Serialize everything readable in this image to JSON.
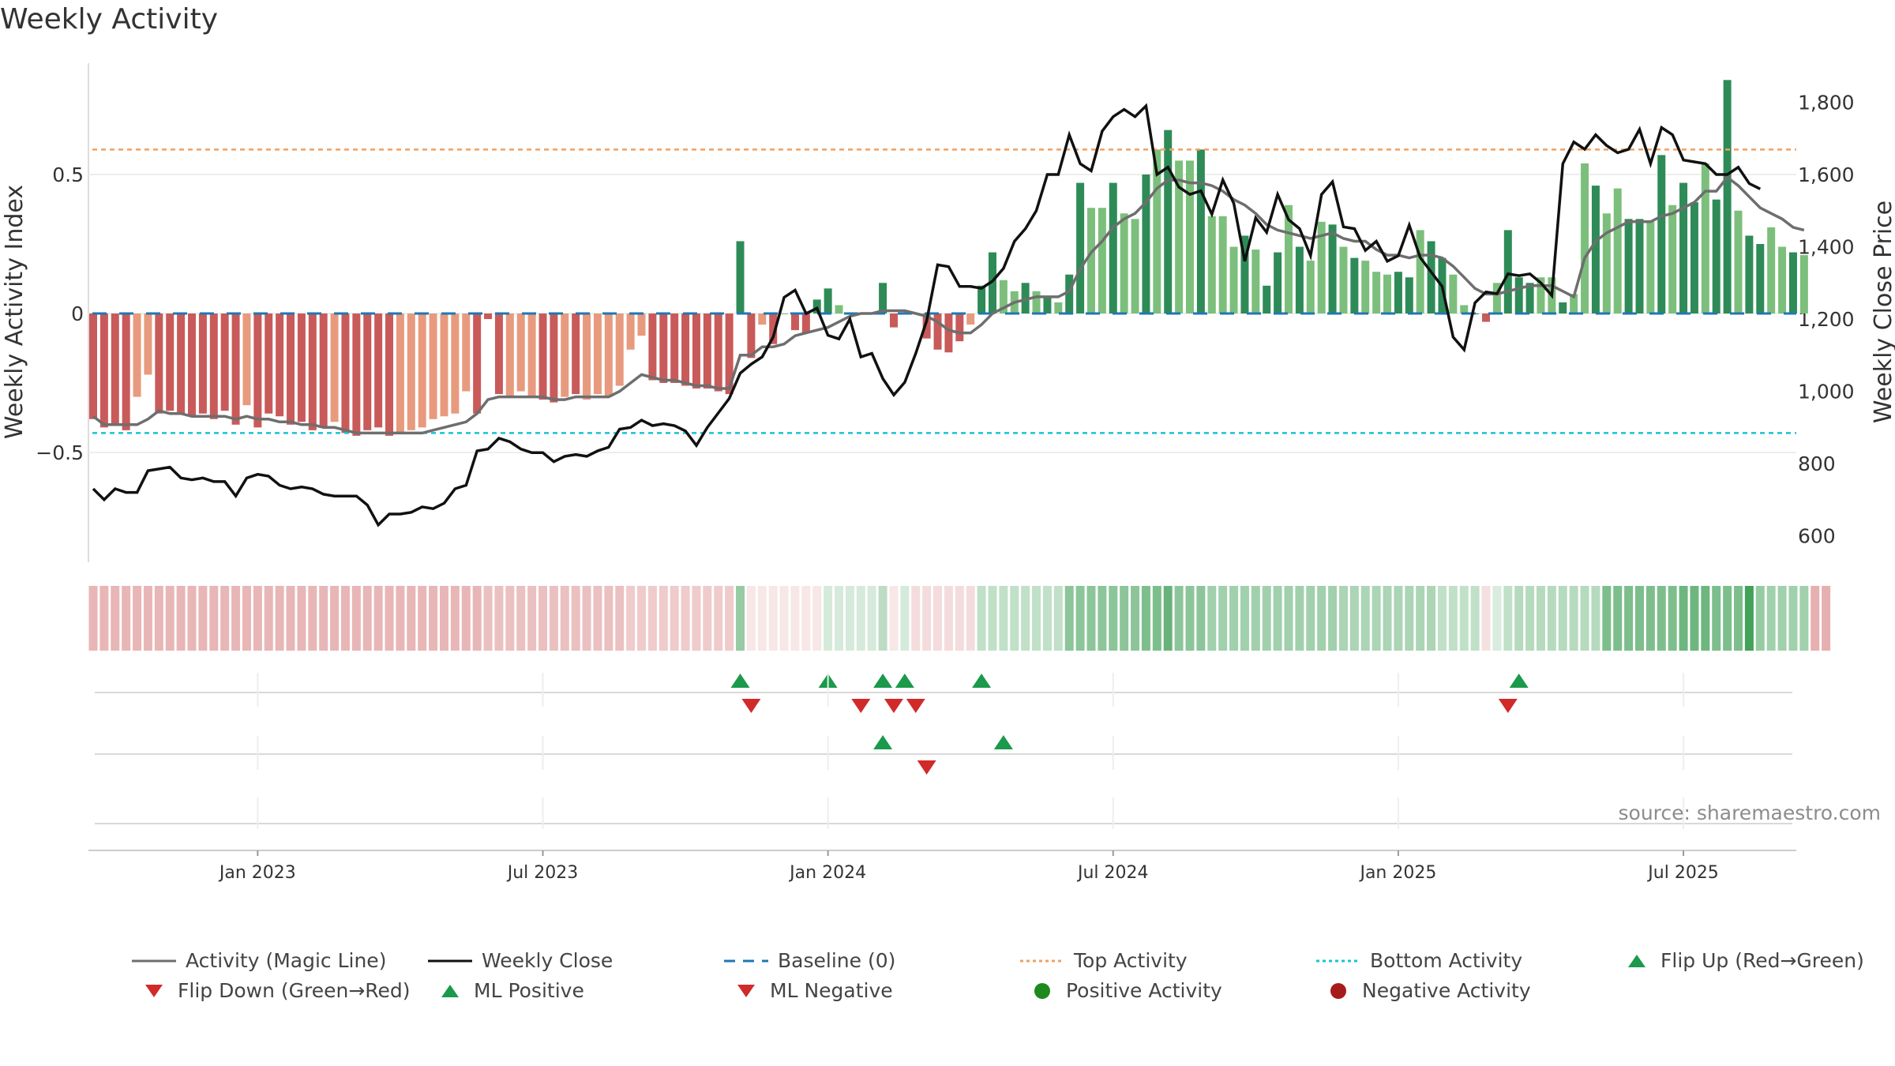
{
  "title": "Weekly Activity",
  "source": "source: sharemaestro.com",
  "colors": {
    "neg_strong": "#c95a5a",
    "neg_weak": "#e89a7e",
    "pos_strong": "#2e8b57",
    "pos_weak": "#7cbf7c",
    "close_line": "#111111",
    "magic_line": "#6e6e6e",
    "baseline": "#1f77b4",
    "top": "#f0a060",
    "bottom": "#17c3d6",
    "flip_up": "#1a9a4a",
    "flip_down": "#d12a2a"
  },
  "chart_data": {
    "type": "bar",
    "title": "Weekly Activity",
    "ylabel_left": "Weekly Activity Index",
    "ylabel_right": "Weekly Close Price",
    "y_left_ticks": [
      "0.5",
      "0",
      "−0.5"
    ],
    "y_left_tick_values": [
      0.5,
      0,
      -0.5
    ],
    "y_left_range": [
      -0.9,
      0.9
    ],
    "y_right_ticks": [
      "1,800",
      "1,600",
      "1,400",
      "1,200",
      "1,000",
      "800",
      "600"
    ],
    "y_right_tick_values": [
      1800,
      1600,
      1400,
      1200,
      1000,
      800,
      600
    ],
    "y_right_range": [
      530,
      1910
    ],
    "x_ticks": [
      "Jan 2023",
      "Jul 2023",
      "Jan 2024",
      "Jul 2024",
      "Jan 2025",
      "Jul 2025"
    ],
    "x_tick_week_index": [
      15,
      41,
      67,
      93,
      119,
      145
    ],
    "top_activity": 0.59,
    "bottom_activity": -0.43,
    "baseline": 0,
    "weeks": 157,
    "activity": [
      -0.38,
      -0.41,
      -0.4,
      -0.42,
      -0.3,
      -0.22,
      -0.36,
      -0.35,
      -0.36,
      -0.37,
      -0.36,
      -0.38,
      -0.35,
      -0.4,
      -0.33,
      -0.41,
      -0.36,
      -0.37,
      -0.4,
      -0.39,
      -0.42,
      -0.41,
      -0.39,
      -0.43,
      -0.44,
      -0.42,
      -0.41,
      -0.44,
      -0.43,
      -0.42,
      -0.41,
      -0.38,
      -0.37,
      -0.36,
      -0.28,
      -0.36,
      -0.02,
      -0.29,
      -0.3,
      -0.28,
      -0.3,
      -0.31,
      -0.32,
      -0.3,
      -0.29,
      -0.31,
      -0.29,
      -0.3,
      -0.26,
      -0.13,
      -0.08,
      -0.24,
      -0.25,
      -0.25,
      -0.26,
      -0.27,
      -0.27,
      -0.28,
      -0.29,
      0.26,
      -0.16,
      -0.04,
      -0.11,
      0.0,
      -0.06,
      -0.07,
      0.05,
      0.09,
      0.03,
      0.0,
      0.0,
      0.0,
      0.11,
      -0.05,
      0.0,
      0.0,
      -0.09,
      -0.13,
      -0.14,
      -0.1,
      -0.04,
      0.1,
      0.22,
      0.12,
      0.08,
      0.11,
      0.08,
      0.06,
      0.04,
      0.14,
      0.47,
      0.38,
      0.38,
      0.47,
      0.36,
      0.34,
      0.5,
      0.59,
      0.66,
      0.55,
      0.55,
      0.59,
      0.35,
      0.35,
      0.24,
      0.28,
      0.23,
      0.1,
      0.22,
      0.39,
      0.24,
      0.19,
      0.33,
      0.32,
      0.24,
      0.2,
      0.19,
      0.15,
      0.14,
      0.15,
      0.13,
      0.3,
      0.26,
      0.2,
      0.14,
      0.03,
      0.0,
      -0.03,
      0.11,
      0.3,
      0.13,
      0.11,
      0.13,
      0.13,
      0.04,
      0.07,
      0.54,
      0.46,
      0.36,
      0.45,
      0.34,
      0.34,
      0.33,
      0.57,
      0.39,
      0.47,
      0.4,
      0.54,
      0.41,
      0.84,
      0.37,
      0.28,
      0.25,
      0.31,
      0.24,
      0.22,
      0.21
    ],
    "activity_strong": [
      1,
      1,
      1,
      1,
      0,
      0,
      1,
      1,
      1,
      1,
      1,
      1,
      1,
      1,
      0,
      1,
      1,
      1,
      1,
      1,
      1,
      1,
      0,
      1,
      1,
      1,
      1,
      1,
      0,
      0,
      0,
      0,
      0,
      0,
      0,
      1,
      1,
      1,
      0,
      0,
      0,
      1,
      1,
      0,
      1,
      0,
      0,
      0,
      0,
      0,
      0,
      1,
      1,
      1,
      1,
      1,
      1,
      1,
      1,
      1,
      1,
      0,
      1,
      0,
      1,
      1,
      1,
      1,
      0,
      0,
      0,
      0,
      1,
      1,
      0,
      0,
      1,
      1,
      1,
      1,
      0,
      1,
      1,
      0,
      0,
      1,
      0,
      1,
      0,
      1,
      1,
      0,
      0,
      1,
      0,
      0,
      1,
      0,
      1,
      0,
      0,
      1,
      0,
      0,
      0,
      1,
      0,
      1,
      1,
      0,
      1,
      0,
      0,
      1,
      0,
      1,
      0,
      0,
      0,
      1,
      1,
      0,
      1,
      1,
      0,
      0,
      1,
      1,
      0,
      1,
      1,
      1,
      0,
      0,
      1,
      0,
      0,
      1,
      0,
      0,
      1,
      1,
      0,
      1,
      0,
      1,
      1,
      0,
      1,
      1,
      0,
      1,
      1,
      0,
      0,
      1,
      0
    ],
    "magic_line": [
      -0.37,
      -0.4,
      -0.4,
      -0.4,
      -0.4,
      -0.38,
      -0.35,
      -0.36,
      -0.36,
      -0.37,
      -0.37,
      -0.37,
      -0.37,
      -0.38,
      -0.37,
      -0.38,
      -0.38,
      -0.39,
      -0.39,
      -0.4,
      -0.4,
      -0.41,
      -0.41,
      -0.42,
      -0.43,
      -0.43,
      -0.43,
      -0.43,
      -0.43,
      -0.43,
      -0.43,
      -0.42,
      -0.41,
      -0.4,
      -0.39,
      -0.36,
      -0.31,
      -0.3,
      -0.3,
      -0.3,
      -0.3,
      -0.3,
      -0.31,
      -0.31,
      -0.3,
      -0.3,
      -0.3,
      -0.3,
      -0.28,
      -0.25,
      -0.22,
      -0.23,
      -0.24,
      -0.24,
      -0.25,
      -0.26,
      -0.26,
      -0.27,
      -0.27,
      -0.15,
      -0.15,
      -0.12,
      -0.12,
      -0.11,
      -0.08,
      -0.07,
      -0.06,
      -0.05,
      -0.03,
      -0.01,
      0.0,
      0.0,
      0.01,
      0.01,
      0.01,
      0.0,
      -0.01,
      -0.03,
      -0.06,
      -0.07,
      -0.07,
      -0.04,
      0.0,
      0.02,
      0.04,
      0.05,
      0.06,
      0.06,
      0.06,
      0.08,
      0.16,
      0.22,
      0.26,
      0.31,
      0.34,
      0.36,
      0.4,
      0.45,
      0.48,
      0.48,
      0.47,
      0.47,
      0.46,
      0.44,
      0.41,
      0.39,
      0.36,
      0.32,
      0.3,
      0.29,
      0.28,
      0.27,
      0.28,
      0.29,
      0.27,
      0.26,
      0.26,
      0.23,
      0.21,
      0.21,
      0.2,
      0.21,
      0.21,
      0.2,
      0.17,
      0.13,
      0.09,
      0.07,
      0.07,
      0.08,
      0.09,
      0.1,
      0.1,
      0.1,
      0.08,
      0.06,
      0.2,
      0.26,
      0.29,
      0.31,
      0.33,
      0.33,
      0.33,
      0.35,
      0.36,
      0.38,
      0.4,
      0.44,
      0.44,
      0.49,
      0.46,
      0.42,
      0.38,
      0.36,
      0.34,
      0.31,
      0.3
    ],
    "weekly_close": [
      730,
      700,
      730,
      720,
      720,
      780,
      785,
      790,
      760,
      755,
      760,
      750,
      750,
      710,
      760,
      770,
      765,
      740,
      730,
      735,
      730,
      715,
      710,
      710,
      710,
      685,
      630,
      660,
      660,
      665,
      680,
      675,
      690,
      730,
      740,
      835,
      840,
      870,
      860,
      840,
      830,
      830,
      805,
      820,
      825,
      820,
      835,
      845,
      895,
      900,
      920,
      905,
      910,
      905,
      890,
      850,
      900,
      940,
      980,
      1050,
      1075,
      1095,
      1150,
      1260,
      1280,
      1215,
      1230,
      1155,
      1145,
      1200,
      1095,
      1105,
      1035,
      990,
      1025,
      1105,
      1195,
      1350,
      1345,
      1290,
      1290,
      1285,
      1305,
      1340,
      1415,
      1450,
      1500,
      1600,
      1600,
      1710,
      1630,
      1610,
      1720,
      1760,
      1780,
      1760,
      1790,
      1600,
      1620,
      1565,
      1545,
      1555,
      1490,
      1585,
      1520,
      1360,
      1480,
      1440,
      1545,
      1475,
      1450,
      1375,
      1545,
      1580,
      1455,
      1450,
      1390,
      1415,
      1360,
      1375,
      1460,
      1370,
      1330,
      1290,
      1150,
      1115,
      1245,
      1275,
      1270,
      1325,
      1320,
      1325,
      1300,
      1265,
      1630,
      1690,
      1670,
      1710,
      1680,
      1660,
      1670,
      1725,
      1630,
      1730,
      1710,
      1640,
      1635,
      1630,
      1600,
      1600,
      1620,
      1575,
      1560
    ],
    "heat_levels": [
      0.42,
      0.42,
      0.42,
      0.42,
      0.42,
      0.42,
      0.42,
      0.42,
      0.42,
      0.42,
      0.42,
      0.42,
      0.42,
      0.42,
      0.42,
      0.42,
      0.42,
      0.42,
      0.42,
      0.42,
      0.42,
      0.42,
      0.42,
      0.42,
      0.42,
      0.42,
      0.42,
      0.42,
      0.42,
      0.42,
      0.42,
      0.42,
      0.42,
      0.42,
      0.42,
      0.42,
      0.36,
      0.36,
      0.36,
      0.36,
      0.36,
      0.36,
      0.36,
      0.36,
      0.36,
      0.36,
      0.36,
      0.36,
      0.36,
      0.3,
      0.3,
      0.3,
      0.3,
      0.3,
      0.3,
      0.3,
      0.3,
      0.3,
      0.3,
      0.5,
      0.14,
      0.14,
      0.14,
      0.14,
      0.14,
      0.14,
      0.14,
      0.2,
      0.2,
      0.2,
      0.2,
      0.2,
      0.32,
      0.14,
      0.2,
      0.2,
      0.2,
      0.2,
      0.2,
      0.2,
      0.2,
      0.3,
      0.3,
      0.3,
      0.3,
      0.3,
      0.3,
      0.3,
      0.3,
      0.55,
      0.55,
      0.55,
      0.55,
      0.55,
      0.55,
      0.55,
      0.62,
      0.62,
      0.72,
      0.55,
      0.55,
      0.55,
      0.45,
      0.45,
      0.45,
      0.45,
      0.45,
      0.45,
      0.45,
      0.45,
      0.45,
      0.45,
      0.45,
      0.45,
      0.4,
      0.4,
      0.4,
      0.4,
      0.4,
      0.4,
      0.4,
      0.4,
      0.4,
      0.3,
      0.3,
      0.3,
      0.3,
      0.18,
      0.18,
      0.3,
      0.35,
      0.35,
      0.35,
      0.35,
      0.35,
      0.35,
      0.35,
      0.35,
      0.62,
      0.62,
      0.62,
      0.62,
      0.62,
      0.62,
      0.62,
      0.7,
      0.7,
      0.7,
      0.62,
      0.62,
      0.62,
      0.9,
      0.5,
      0.45,
      0.45,
      0.45,
      0.45,
      0.45,
      0.45
    ],
    "heat_sign": [
      -1,
      -1,
      -1,
      -1,
      -1,
      -1,
      -1,
      -1,
      -1,
      -1,
      -1,
      -1,
      -1,
      -1,
      -1,
      -1,
      -1,
      -1,
      -1,
      -1,
      -1,
      -1,
      -1,
      -1,
      -1,
      -1,
      -1,
      -1,
      -1,
      -1,
      -1,
      -1,
      -1,
      -1,
      -1,
      -1,
      -1,
      -1,
      -1,
      -1,
      -1,
      -1,
      -1,
      -1,
      -1,
      -1,
      -1,
      -1,
      -1,
      -1,
      -1,
      -1,
      -1,
      -1,
      -1,
      -1,
      -1,
      -1,
      -1,
      1,
      -1,
      -1,
      -1,
      -1,
      -1,
      -1,
      -1,
      1,
      1,
      1,
      1,
      1,
      1,
      -1,
      1,
      -1,
      -1,
      -1,
      -1,
      -1,
      -1,
      1,
      1,
      1,
      1,
      1,
      1,
      1,
      1,
      1,
      1,
      1,
      1,
      1,
      1,
      1,
      1,
      1,
      1,
      1,
      1,
      1,
      1,
      1,
      1,
      1,
      1,
      1,
      1,
      1,
      1,
      1,
      1,
      1,
      1,
      1,
      1,
      1,
      1,
      1,
      1,
      1,
      1,
      1,
      1,
      1,
      1,
      -1,
      1,
      1,
      1,
      1,
      1,
      1,
      1,
      1,
      1,
      1,
      1,
      1,
      1,
      1,
      1,
      1,
      1,
      1,
      1,
      1,
      1,
      1,
      1,
      1,
      1,
      1,
      1,
      1,
      1
    ],
    "flip_up_weeks": [
      59,
      67,
      72,
      74,
      81,
      130
    ],
    "flip_down_weeks": [
      60,
      70,
      73,
      75,
      129
    ],
    "ml_positive_weeks": [
      72,
      83
    ],
    "ml_negative_weeks": [
      76
    ],
    "positive_activity_weeks": [],
    "negative_activity_weeks": []
  },
  "legend": [
    {
      "label": "Activity (Magic Line)",
      "icon": "magic-line"
    },
    {
      "label": "Weekly Close",
      "icon": "close-line"
    },
    {
      "label": "Baseline (0)",
      "icon": "baseline-dash"
    },
    {
      "label": "Top Activity",
      "icon": "top-dot"
    },
    {
      "label": "Bottom Activity",
      "icon": "bottom-dot"
    },
    {
      "label": "Flip Up (Red→Green)",
      "icon": "triangle-up-icon"
    },
    {
      "label": "Flip Down (Green→Red)",
      "icon": "triangle-down-icon"
    },
    {
      "label": "ML Positive",
      "icon": "triangle-up-icon"
    },
    {
      "label": "ML Negative",
      "icon": "triangle-down-icon"
    },
    {
      "label": "Positive Activity",
      "icon": "green-circle-icon"
    },
    {
      "label": "Negative Activity",
      "icon": "red-circle-icon"
    }
  ]
}
